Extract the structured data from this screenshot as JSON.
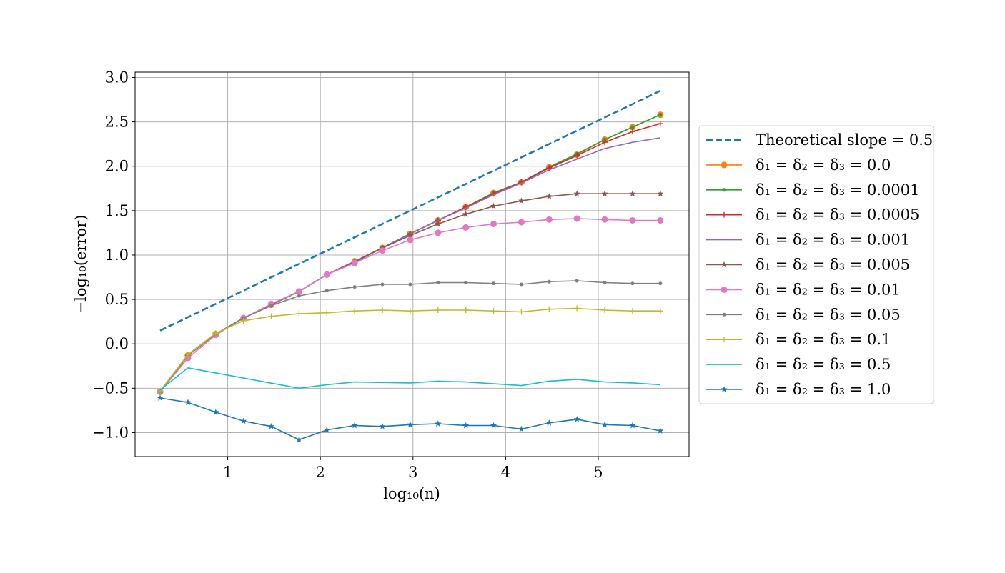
{
  "chart_data": {
    "type": "line",
    "xlabel": "log₁₀(n)",
    "ylabel": "−log₁₀(error)",
    "xlim": [
      0.0,
      5.98
    ],
    "ylim": [
      -1.27,
      3.06
    ],
    "xticks": [
      1,
      2,
      3,
      4,
      5
    ],
    "yticks": [
      -1.0,
      -0.5,
      0.0,
      0.5,
      1.0,
      1.5,
      2.0,
      2.5,
      3.0
    ],
    "xtick_labels": [
      "1",
      "2",
      "3",
      "4",
      "5"
    ],
    "ytick_labels": [
      "−1.0",
      "−0.5",
      "0.0",
      "0.5",
      "1.0",
      "1.5",
      "2.0",
      "2.5",
      "3.0"
    ],
    "grid": true,
    "legend_position": "right, outside plot",
    "x": [
      0.27,
      0.57,
      0.87,
      1.17,
      1.47,
      1.77,
      2.07,
      2.37,
      2.67,
      2.97,
      3.27,
      3.57,
      3.87,
      4.17,
      4.47,
      4.77,
      5.07,
      5.37,
      5.67
    ],
    "series": [
      {
        "name": "Theoretical slope =  0.5",
        "color": "#1f77b4",
        "dashed": true,
        "marker": "none",
        "x": [
          0.27,
          5.67
        ],
        "values": [
          0.15,
          2.85
        ]
      },
      {
        "name": "δ₁ = δ₂ = δ₃ = 0.0",
        "color": "#ff7f0e",
        "marker": "circle",
        "values": [
          -0.54,
          -0.13,
          0.11,
          0.29,
          0.44,
          0.59,
          0.78,
          0.93,
          1.08,
          1.24,
          1.39,
          1.54,
          1.7,
          1.82,
          1.99,
          2.13,
          2.3,
          2.44,
          2.58
        ]
      },
      {
        "name": "δ₁ = δ₂ = δ₃ = 0.0001",
        "color": "#2ca02c",
        "marker": "point",
        "values": [
          -0.54,
          -0.13,
          0.11,
          0.29,
          0.44,
          0.59,
          0.78,
          0.93,
          1.08,
          1.24,
          1.39,
          1.54,
          1.7,
          1.82,
          1.99,
          2.14,
          2.3,
          2.44,
          2.58
        ]
      },
      {
        "name": "δ₁ = δ₂ = δ₃ = 0.0005",
        "color": "#d62728",
        "marker": "plus",
        "values": [
          -0.54,
          -0.13,
          0.11,
          0.29,
          0.44,
          0.59,
          0.78,
          0.93,
          1.08,
          1.24,
          1.39,
          1.54,
          1.69,
          1.82,
          1.98,
          2.12,
          2.27,
          2.39,
          2.48
        ]
      },
      {
        "name": "δ₁ = δ₂ = δ₃ = 0.001",
        "color": "#9467bd",
        "marker": "none",
        "values": [
          -0.54,
          -0.13,
          0.11,
          0.29,
          0.44,
          0.59,
          0.78,
          0.93,
          1.08,
          1.24,
          1.39,
          1.53,
          1.68,
          1.81,
          1.96,
          2.08,
          2.2,
          2.27,
          2.32
        ]
      },
      {
        "name": "δ₁ = δ₂ = δ₃ = 0.005",
        "color": "#8c564b",
        "marker": "star",
        "values": [
          -0.54,
          -0.13,
          0.11,
          0.29,
          0.44,
          0.59,
          0.78,
          0.92,
          1.08,
          1.22,
          1.35,
          1.46,
          1.55,
          1.61,
          1.66,
          1.69,
          1.69,
          1.69,
          1.69
        ]
      },
      {
        "name": "δ₁ = δ₂ = δ₃ = 0.01",
        "color": "#e377c2",
        "marker": "circle",
        "values": [
          -0.54,
          -0.16,
          0.1,
          0.29,
          0.45,
          0.59,
          0.78,
          0.91,
          1.05,
          1.17,
          1.25,
          1.31,
          1.35,
          1.37,
          1.4,
          1.41,
          1.4,
          1.39,
          1.39
        ]
      },
      {
        "name": "δ₁ = δ₂ = δ₃ = 0.05",
        "color": "#7f7f7f",
        "marker": "point",
        "values": [
          -0.54,
          -0.13,
          0.11,
          0.29,
          0.43,
          0.54,
          0.6,
          0.64,
          0.67,
          0.67,
          0.69,
          0.69,
          0.68,
          0.67,
          0.7,
          0.71,
          0.69,
          0.68,
          0.68
        ]
      },
      {
        "name": "δ₁ = δ₂ = δ₃ = 0.1",
        "color": "#bcbd22",
        "marker": "plus",
        "values": [
          -0.53,
          -0.12,
          0.12,
          0.26,
          0.31,
          0.34,
          0.35,
          0.37,
          0.38,
          0.37,
          0.38,
          0.38,
          0.37,
          0.36,
          0.39,
          0.4,
          0.38,
          0.37,
          0.37
        ]
      },
      {
        "name": "δ₁ = δ₂ = δ₃ = 0.5",
        "color": "#17becf",
        "marker": "none",
        "values": [
          -0.52,
          -0.27,
          null,
          null,
          null,
          -0.5,
          -0.46,
          -0.43,
          null,
          -0.44,
          -0.42,
          -0.43,
          -0.45,
          -0.47,
          -0.42,
          -0.4,
          -0.43,
          -0.44,
          -0.46
        ]
      },
      {
        "name": "δ₁ = δ₂ = δ₃ = 1.0",
        "color": "#1f77b4",
        "marker": "star",
        "values": [
          -0.61,
          -0.66,
          -0.77,
          -0.87,
          -0.93,
          -1.08,
          -0.97,
          -0.92,
          -0.93,
          -0.91,
          -0.9,
          -0.92,
          -0.92,
          -0.96,
          -0.89,
          -0.85,
          -0.91,
          -0.92,
          -0.98
        ]
      }
    ]
  }
}
